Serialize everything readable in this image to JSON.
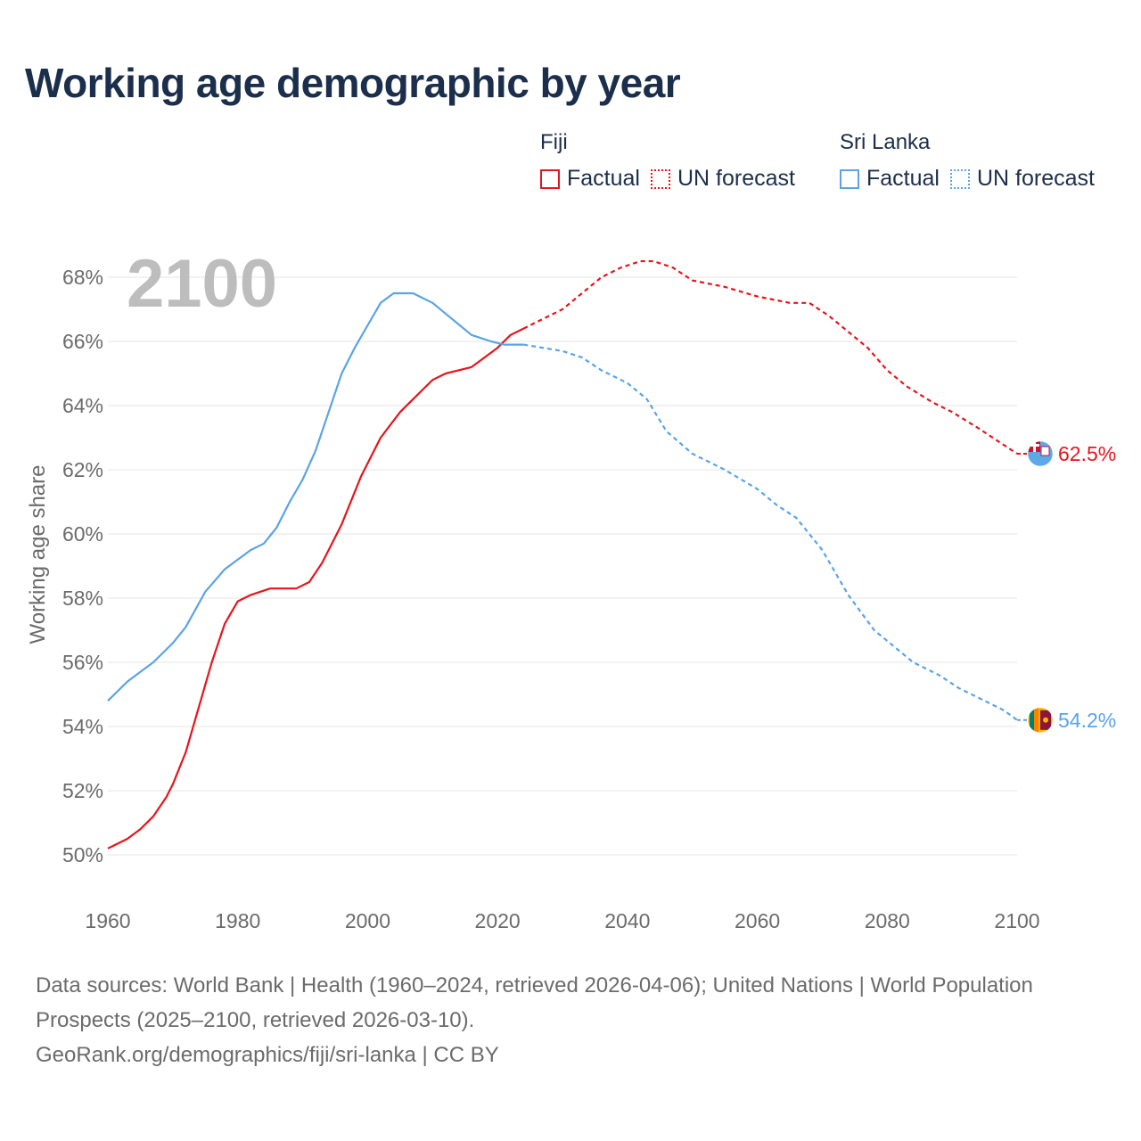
{
  "title": "Working age demographic by year",
  "year_label": "2100",
  "legend": {
    "groups": [
      {
        "name": "Fiji",
        "color": "#e8141c",
        "items": [
          {
            "label": "Factual",
            "style": "solid"
          },
          {
            "label": "UN forecast",
            "style": "dotted"
          }
        ]
      },
      {
        "name": "Sri Lanka",
        "color": "#5ba3e6",
        "items": [
          {
            "label": "Factual",
            "style": "solid"
          },
          {
            "label": "UN forecast",
            "style": "dotted"
          }
        ]
      }
    ]
  },
  "chart_data": {
    "type": "line",
    "title": "Working age demographic by year",
    "xlabel": "",
    "ylabel": "Working age share",
    "xlim": [
      1960,
      2100
    ],
    "ylim": [
      49,
      69
    ],
    "xticks": [
      1960,
      1980,
      2000,
      2020,
      2040,
      2060,
      2080,
      2100
    ],
    "yticks": [
      50,
      52,
      54,
      56,
      58,
      60,
      62,
      64,
      66,
      68
    ],
    "ytick_suffix": "%",
    "factual_range": [
      1960,
      2024
    ],
    "forecast_range": [
      2024,
      2100
    ],
    "series": [
      {
        "name": "Fiji",
        "color": "#e8141c",
        "end_label": "62.5%",
        "flag": "fiji-flag",
        "points": [
          [
            1960,
            50.2
          ],
          [
            1963,
            50.5
          ],
          [
            1965,
            50.8
          ],
          [
            1967,
            51.2
          ],
          [
            1969,
            51.8
          ],
          [
            1970,
            52.2
          ],
          [
            1972,
            53.2
          ],
          [
            1974,
            54.6
          ],
          [
            1976,
            56.0
          ],
          [
            1978,
            57.2
          ],
          [
            1980,
            57.9
          ],
          [
            1982,
            58.1
          ],
          [
            1985,
            58.3
          ],
          [
            1989,
            58.3
          ],
          [
            1991,
            58.5
          ],
          [
            1993,
            59.1
          ],
          [
            1996,
            60.3
          ],
          [
            1999,
            61.8
          ],
          [
            2002,
            63.0
          ],
          [
            2005,
            63.8
          ],
          [
            2007,
            64.2
          ],
          [
            2009,
            64.6
          ],
          [
            2010,
            64.8
          ],
          [
            2012,
            65.0
          ],
          [
            2014,
            65.1
          ],
          [
            2016,
            65.2
          ],
          [
            2018,
            65.5
          ],
          [
            2020,
            65.8
          ],
          [
            2022,
            66.2
          ],
          [
            2024,
            66.4
          ],
          [
            2027,
            66.7
          ],
          [
            2030,
            67.0
          ],
          [
            2033,
            67.5
          ],
          [
            2036,
            68.0
          ],
          [
            2039,
            68.3
          ],
          [
            2042,
            68.5
          ],
          [
            2044,
            68.5
          ],
          [
            2047,
            68.3
          ],
          [
            2050,
            67.9
          ],
          [
            2055,
            67.7
          ],
          [
            2060,
            67.4
          ],
          [
            2065,
            67.2
          ],
          [
            2068,
            67.2
          ],
          [
            2071,
            66.8
          ],
          [
            2074,
            66.3
          ],
          [
            2077,
            65.8
          ],
          [
            2080,
            65.1
          ],
          [
            2083,
            64.6
          ],
          [
            2087,
            64.1
          ],
          [
            2090,
            63.8
          ],
          [
            2094,
            63.3
          ],
          [
            2097,
            62.9
          ],
          [
            2100,
            62.5
          ]
        ]
      },
      {
        "name": "Sri Lanka",
        "color": "#5ba3e6",
        "end_label": "54.2%",
        "flag": "sri-lanka-flag",
        "points": [
          [
            1960,
            54.8
          ],
          [
            1963,
            55.4
          ],
          [
            1965,
            55.7
          ],
          [
            1967,
            56.0
          ],
          [
            1970,
            56.6
          ],
          [
            1972,
            57.1
          ],
          [
            1975,
            58.2
          ],
          [
            1978,
            58.9
          ],
          [
            1980,
            59.2
          ],
          [
            1982,
            59.5
          ],
          [
            1984,
            59.7
          ],
          [
            1986,
            60.2
          ],
          [
            1988,
            61.0
          ],
          [
            1990,
            61.7
          ],
          [
            1992,
            62.6
          ],
          [
            1994,
            63.8
          ],
          [
            1996,
            65.0
          ],
          [
            1998,
            65.8
          ],
          [
            2000,
            66.5
          ],
          [
            2002,
            67.2
          ],
          [
            2004,
            67.5
          ],
          [
            2007,
            67.5
          ],
          [
            2010,
            67.2
          ],
          [
            2013,
            66.7
          ],
          [
            2016,
            66.2
          ],
          [
            2019,
            66.0
          ],
          [
            2021,
            65.9
          ],
          [
            2024,
            65.9
          ],
          [
            2027,
            65.8
          ],
          [
            2030,
            65.7
          ],
          [
            2033,
            65.5
          ],
          [
            2036,
            65.1
          ],
          [
            2040,
            64.7
          ],
          [
            2043,
            64.2
          ],
          [
            2046,
            63.2
          ],
          [
            2050,
            62.5
          ],
          [
            2055,
            62.0
          ],
          [
            2060,
            61.4
          ],
          [
            2063,
            60.9
          ],
          [
            2066,
            60.5
          ],
          [
            2070,
            59.5
          ],
          [
            2074,
            58.1
          ],
          [
            2078,
            57.0
          ],
          [
            2081,
            56.5
          ],
          [
            2084,
            56.0
          ],
          [
            2088,
            55.6
          ],
          [
            2091,
            55.2
          ],
          [
            2095,
            54.8
          ],
          [
            2098,
            54.5
          ],
          [
            2100,
            54.2
          ]
        ]
      }
    ]
  },
  "footer": {
    "line1": "Data sources: World Bank | Health (1960–2024, retrieved 2026-04-06); United Nations | World Population Prospects (2025–2100, retrieved 2026-03-10).",
    "line2": "GeoRank.org/demographics/fiji/sri-lanka | CC BY"
  }
}
